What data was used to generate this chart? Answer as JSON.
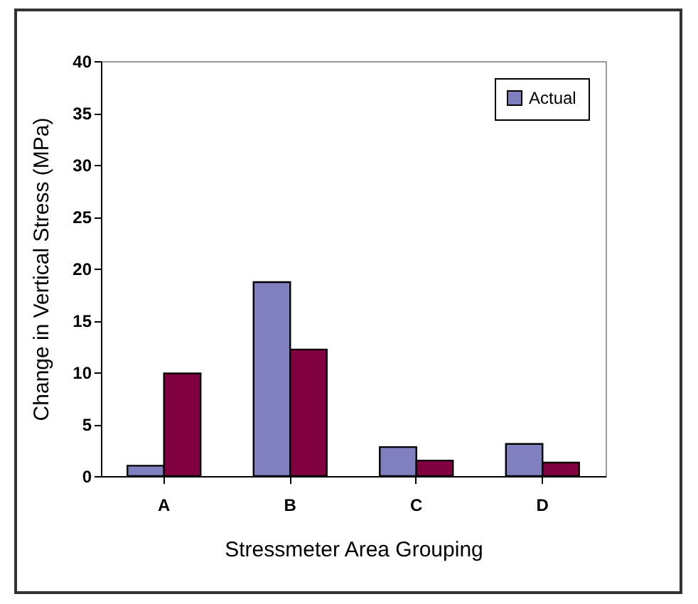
{
  "chart_data": {
    "type": "bar",
    "xlabel": "Stressmeter Area Grouping",
    "ylabel": "Change in Vertical Stress (MPa)",
    "categories": [
      "A",
      "B",
      "C",
      "D"
    ],
    "series": [
      {
        "name": "Actual",
        "color": "#8080c0",
        "values": [
          1.0,
          18.7,
          2.8,
          3.1
        ]
      },
      {
        "color": "#800040",
        "values": [
          9.9,
          12.2,
          1.5,
          1.3
        ]
      }
    ],
    "ylim": [
      0,
      40
    ],
    "yticks": [
      0,
      5,
      10,
      15,
      20,
      25,
      30,
      35,
      40
    ],
    "grid": false,
    "legend": "top right"
  }
}
